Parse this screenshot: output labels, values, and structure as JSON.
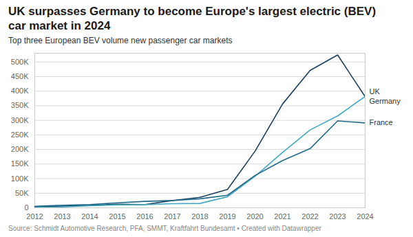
{
  "chart_data": {
    "type": "line",
    "title": "UK surpasses Germany to become Europe's largest electric (BEV) car market in 2024",
    "subtitle": "Top three European BEV volume new passenger car markets",
    "caption": "Source: Schmidt Automotive Research, PFA, SMMT, Kraftfahrt Bundesamt • Created with Datawrapper",
    "x": [
      2012,
      2013,
      2014,
      2015,
      2016,
      2017,
      2018,
      2019,
      2020,
      2021,
      2022,
      2023,
      2024
    ],
    "series": [
      {
        "name": "Germany",
        "color": "#1b3f5e",
        "values": [
          3000,
          6000,
          8000,
          12000,
          11000,
          25000,
          36000,
          63000,
          194000,
          356000,
          471000,
          524000,
          381000
        ]
      },
      {
        "name": "UK",
        "color": "#41a8c0",
        "values": [
          1000,
          3000,
          7000,
          10000,
          11000,
          14000,
          15000,
          38000,
          108000,
          190000,
          267000,
          315000,
          382000
        ]
      },
      {
        "name": "France",
        "color": "#1f6a8a",
        "values": [
          5000,
          9000,
          11000,
          17000,
          22000,
          25000,
          31000,
          43000,
          111000,
          162000,
          203000,
          298000,
          291000
        ]
      }
    ],
    "xlim": [
      2012,
      2024
    ],
    "xticks": [
      2012,
      2013,
      2014,
      2015,
      2016,
      2017,
      2018,
      2019,
      2020,
      2021,
      2022,
      2023,
      2024
    ],
    "ylim": [
      0,
      530000
    ],
    "yticks": [
      0,
      {
        "value": 50000,
        "label": "50K"
      },
      {
        "value": 100000,
        "label": "100K"
      },
      {
        "value": 150000,
        "label": "150K"
      },
      {
        "value": 200000,
        "label": "200K"
      },
      {
        "value": 250000,
        "label": "250K"
      },
      {
        "value": 300000,
        "label": "300K"
      },
      {
        "value": 350000,
        "label": "350K"
      },
      {
        "value": 400000,
        "label": "400K"
      },
      {
        "value": 450000,
        "label": "450K"
      },
      {
        "value": 500000,
        "label": "500K"
      }
    ],
    "grid": true
  }
}
